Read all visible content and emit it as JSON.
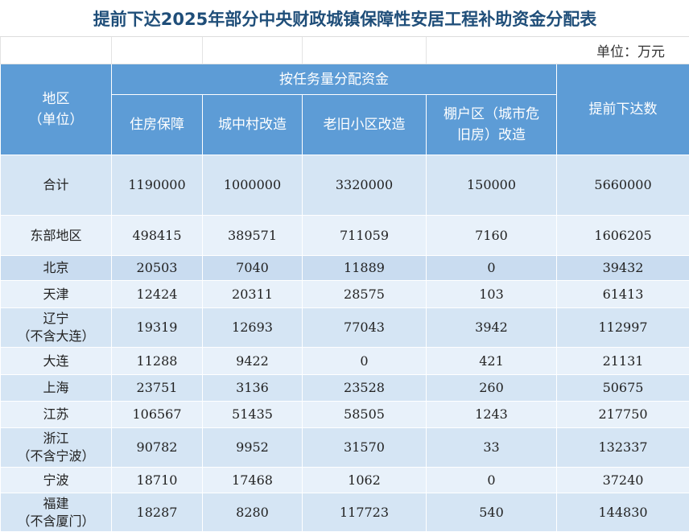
{
  "title": "提前下达2025年部分中央财政城镇保障性安居工程补助资金分配表",
  "unit": "单位：万元",
  "header": {
    "region": [
      "地区",
      "（单位）"
    ],
    "group": "按任务量分配资金",
    "columns": [
      "住房保障",
      "城中村改造",
      "老旧小区改造",
      "棚户区（城市危旧房）改造"
    ],
    "total": "提前下达数"
  },
  "table": {
    "rows": [
      {
        "region": [
          "合计"
        ],
        "values": [
          1190000,
          1000000,
          3320000,
          150000,
          5660000
        ]
      },
      {
        "region": [
          "东部地区"
        ],
        "values": [
          498415,
          389571,
          711059,
          7160,
          1606205
        ]
      },
      {
        "region": [
          "北京"
        ],
        "values": [
          20503,
          7040,
          11889,
          0,
          39432
        ]
      },
      {
        "region": [
          "天津"
        ],
        "values": [
          12424,
          20311,
          28575,
          103,
          61413
        ]
      },
      {
        "region": [
          "辽宁",
          "（不含大连）"
        ],
        "values": [
          19319,
          12693,
          77043,
          3942,
          112997
        ]
      },
      {
        "region": [
          "大连"
        ],
        "values": [
          11288,
          9422,
          0,
          421,
          21131
        ]
      },
      {
        "region": [
          "上海"
        ],
        "values": [
          23751,
          3136,
          23528,
          260,
          50675
        ]
      },
      {
        "region": [
          "江苏"
        ],
        "values": [
          106567,
          51435,
          58505,
          1243,
          217750
        ]
      },
      {
        "region": [
          "浙江",
          "（不含宁波）"
        ],
        "values": [
          90782,
          9952,
          31570,
          33,
          132337
        ]
      },
      {
        "region": [
          "宁波"
        ],
        "values": [
          18710,
          17468,
          1062,
          0,
          37240
        ]
      },
      {
        "region": [
          "福建",
          "（不含厦门）"
        ],
        "values": [
          18287,
          8280,
          117723,
          540,
          144830
        ]
      }
    ]
  }
}
